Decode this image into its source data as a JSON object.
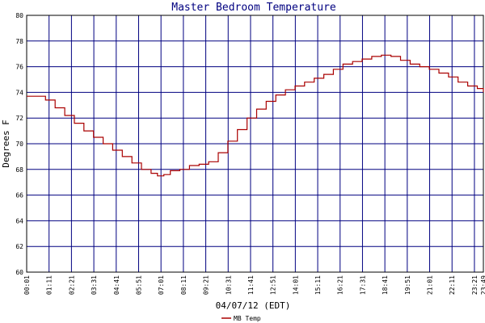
{
  "chart_data": {
    "type": "line",
    "title": "Master Bedroom Temperature",
    "xlabel": "04/07/12 (EDT)",
    "ylabel": "Degrees F",
    "ylim": [
      60,
      80
    ],
    "yticks": [
      60,
      62,
      64,
      66,
      68,
      70,
      72,
      74,
      76,
      78,
      80
    ],
    "x_tick_labels": [
      "00:01",
      "01:11",
      "02:21",
      "03:31",
      "04:41",
      "05:51",
      "07:01",
      "08:11",
      "09:21",
      "10:31",
      "11:41",
      "12:51",
      "14:01",
      "15:11",
      "16:21",
      "17:31",
      "18:41",
      "19:51",
      "21:01",
      "22:11",
      "23:21",
      "23:49"
    ],
    "grid": true,
    "legend_position": "bottom-center",
    "colors": {
      "grid": "#000080",
      "line": "#aa0000",
      "frame": "#000000"
    },
    "series": [
      {
        "name": "MB Temp",
        "points": [
          [
            "00:01",
            73.7
          ],
          [
            "00:30",
            73.7
          ],
          [
            "01:00",
            73.4
          ],
          [
            "01:30",
            72.8
          ],
          [
            "02:00",
            72.2
          ],
          [
            "02:30",
            71.6
          ],
          [
            "03:00",
            71.0
          ],
          [
            "03:30",
            70.5
          ],
          [
            "04:00",
            70.0
          ],
          [
            "04:30",
            69.5
          ],
          [
            "05:00",
            69.0
          ],
          [
            "05:30",
            68.5
          ],
          [
            "06:00",
            68.0
          ],
          [
            "06:30",
            67.7
          ],
          [
            "06:50",
            67.5
          ],
          [
            "07:10",
            67.6
          ],
          [
            "07:30",
            67.9
          ],
          [
            "08:00",
            68.0
          ],
          [
            "08:30",
            68.3
          ],
          [
            "09:00",
            68.4
          ],
          [
            "09:30",
            68.6
          ],
          [
            "10:00",
            69.3
          ],
          [
            "10:30",
            70.2
          ],
          [
            "11:00",
            71.1
          ],
          [
            "11:30",
            72.0
          ],
          [
            "12:00",
            72.7
          ],
          [
            "12:30",
            73.3
          ],
          [
            "13:00",
            73.8
          ],
          [
            "13:30",
            74.2
          ],
          [
            "14:00",
            74.5
          ],
          [
            "14:30",
            74.8
          ],
          [
            "15:00",
            75.1
          ],
          [
            "15:30",
            75.4
          ],
          [
            "16:00",
            75.8
          ],
          [
            "16:30",
            76.2
          ],
          [
            "17:00",
            76.4
          ],
          [
            "17:30",
            76.6
          ],
          [
            "18:00",
            76.8
          ],
          [
            "18:30",
            76.9
          ],
          [
            "19:00",
            76.8
          ],
          [
            "19:30",
            76.5
          ],
          [
            "20:00",
            76.2
          ],
          [
            "20:30",
            76.0
          ],
          [
            "21:00",
            75.8
          ],
          [
            "21:30",
            75.5
          ],
          [
            "22:00",
            75.2
          ],
          [
            "22:30",
            74.8
          ],
          [
            "23:00",
            74.5
          ],
          [
            "23:30",
            74.3
          ],
          [
            "23:49",
            74.0
          ]
        ]
      }
    ]
  }
}
